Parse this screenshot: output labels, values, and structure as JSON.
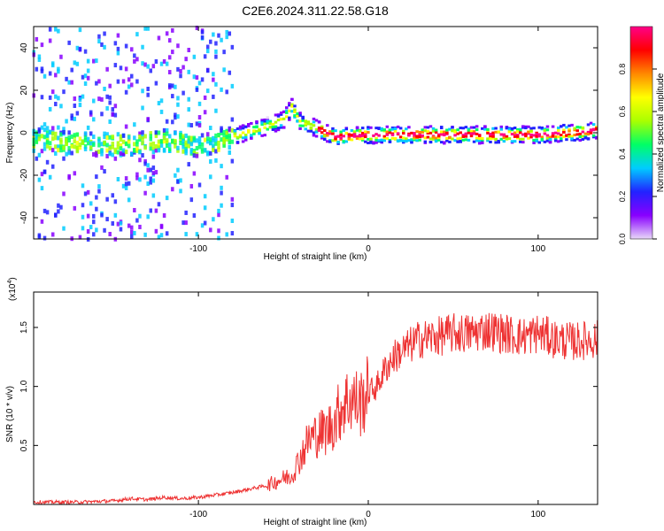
{
  "title": "C2E6.2024.311.22.58.G18",
  "chart_data": [
    {
      "type": "heatmap",
      "xlabel": "Height of straight line (km)",
      "ylabel": "Frequency (Hz)",
      "xlim": [
        -197,
        135
      ],
      "ylim": [
        -50,
        50
      ],
      "xticks": [
        -100,
        0,
        100
      ],
      "yticks": [
        -40,
        -20,
        0,
        20,
        40
      ],
      "colorbar": {
        "label": "Normalized spectral amplitude",
        "range": [
          0,
          1
        ],
        "ticks": [
          0.0,
          0.2,
          0.4,
          0.6,
          0.8
        ],
        "tick_labels": [
          "0.0",
          "0.2",
          "0.4",
          "0.6",
          "0.8"
        ],
        "colors": [
          "#e8d8f8",
          "#8800ff",
          "#2222ff",
          "#00ccff",
          "#00ff66",
          "#aaff00",
          "#ffff00",
          "#ff8800",
          "#ff0000",
          "#ff0088"
        ]
      },
      "ridge": {
        "x": [
          -197,
          -160,
          -140,
          -120,
          -100,
          -80,
          -60,
          -50,
          -45,
          -40,
          -30,
          -20,
          0,
          20,
          40,
          60,
          80,
          100,
          120,
          135
        ],
        "y": [
          -3,
          -5,
          -5,
          -3,
          -6,
          -2,
          3,
          6,
          12,
          5,
          2,
          -2,
          -1,
          -1,
          -1,
          -1,
          -1,
          -1,
          0,
          1
        ]
      }
    },
    {
      "type": "line",
      "xlabel": "Height of straight line (km)",
      "ylabel": "SNR (10 * v/v)",
      "multiplier_label": "(x10",
      "multiplier_exp": "4",
      "multiplier_close": ")",
      "xlim": [
        -197,
        135
      ],
      "ylim": [
        0,
        1.8
      ],
      "xticks": [
        -100,
        0,
        100
      ],
      "yticks": [
        0.5,
        1.0,
        1.5
      ],
      "ytick_labels": [
        "0.5",
        "1.0",
        "1.5"
      ],
      "color": "#ee3333",
      "series": [
        {
          "x": [
            -197,
            -170,
            -150,
            -140,
            -130,
            -120,
            -110,
            -100,
            -90,
            -80,
            -70,
            -60,
            -50,
            -45,
            -40,
            -35,
            -30,
            -25,
            -20,
            -15,
            -10,
            -5,
            0,
            5,
            10,
            15,
            20,
            30,
            40,
            50,
            60,
            70,
            80,
            90,
            100,
            110,
            120,
            135
          ],
          "y": [
            0.02,
            0.02,
            0.03,
            0.05,
            0.04,
            0.06,
            0.05,
            0.06,
            0.08,
            0.1,
            0.13,
            0.16,
            0.22,
            0.25,
            0.4,
            0.55,
            0.6,
            0.62,
            0.7,
            0.85,
            0.9,
            0.85,
            0.95,
            1.0,
            1.15,
            1.25,
            1.3,
            1.4,
            1.42,
            1.45,
            1.45,
            1.48,
            1.45,
            1.42,
            1.45,
            1.4,
            1.38,
            1.4
          ]
        }
      ]
    }
  ]
}
